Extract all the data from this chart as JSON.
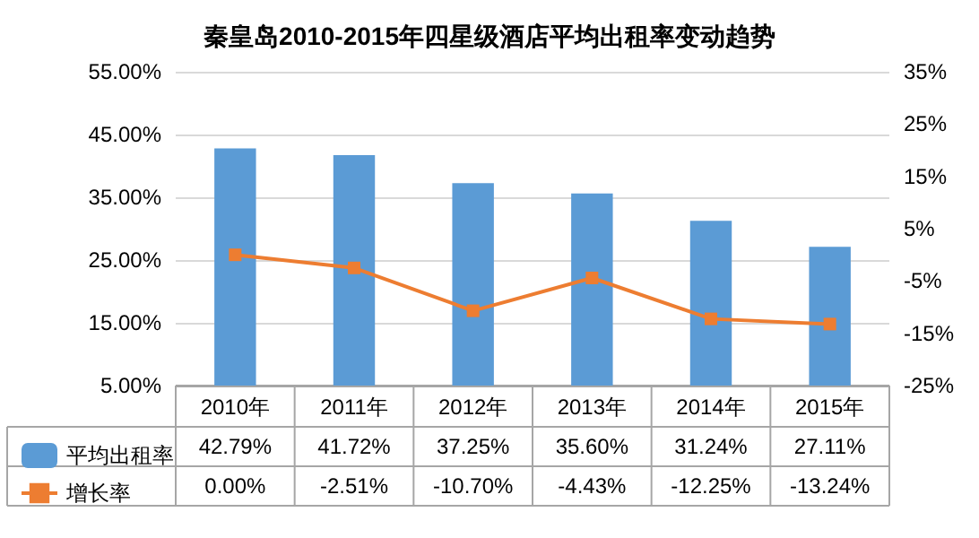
{
  "chart_data": {
    "type": "bar",
    "title": "秦皇岛2010-2015年四星级酒店平均出租率变动趋势",
    "categories": [
      "2010年",
      "2011年",
      "2012年",
      "2013年",
      "2014年",
      "2015年"
    ],
    "series": [
      {
        "name": "平均出租率",
        "color": "#5b9bd5",
        "values": [
          42.79,
          41.72,
          37.25,
          35.6,
          31.24,
          27.11
        ],
        "value_labels": [
          "42.79%",
          "41.72%",
          "37.25%",
          "35.60%",
          "31.24%",
          "27.11%"
        ]
      },
      {
        "name": "增长率",
        "type": "line",
        "axis": "y2",
        "color": "#ed7d31",
        "values": [
          0,
          -2.51,
          -10.7,
          -4.43,
          -12.25,
          -13.24
        ],
        "value_labels": [
          "0.00%",
          "-2.51%",
          "-10.70%",
          "-4.43%",
          "-12.25%",
          "-13.24%"
        ]
      }
    ],
    "ylim": [
      5,
      55
    ],
    "yticks": [
      {
        "value": 5,
        "label": "5.00%"
      },
      {
        "value": 15,
        "label": "15.00%"
      },
      {
        "value": 25,
        "label": "25.00%"
      },
      {
        "value": 35,
        "label": "35.00%"
      },
      {
        "value": 45,
        "label": "45.00%"
      },
      {
        "value": 55,
        "label": "55.00%"
      }
    ],
    "y2lim": [
      -25,
      35
    ],
    "y2ticks": [
      {
        "value": -25,
        "label": "-25%"
      },
      {
        "value": -15,
        "label": "-15%"
      },
      {
        "value": -5,
        "label": "-5%"
      },
      {
        "value": 5,
        "label": "5%"
      },
      {
        "value": 15,
        "label": "15%"
      },
      {
        "value": 25,
        "label": "25%"
      },
      {
        "value": 35,
        "label": "35%"
      }
    ],
    "grid": "y",
    "legend": "bottom",
    "marker": "square",
    "line_style": "solid"
  }
}
